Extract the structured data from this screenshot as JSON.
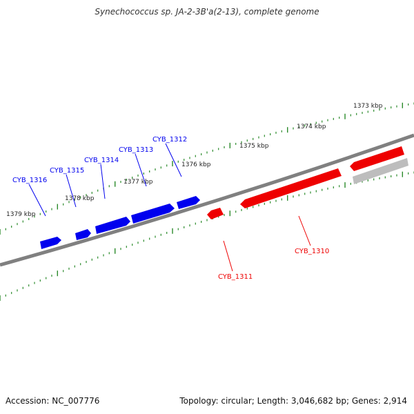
{
  "title": "Synechococcus sp. JA-2-3B'a(2-13), complete genome",
  "footer": {
    "accession": "Accession: NC_007776",
    "summary": "Topology: circular; Length: 3,046,682 bp; Genes: 2,914"
  },
  "colors": {
    "backbone": "#808080",
    "tick": "#2a8a2a",
    "forward_gene": "#0000ee",
    "reverse_gene": "#ee0000",
    "unlabeled_gene": "#bdbdbd"
  },
  "ruler_labels": [
    {
      "text": "1373 kbp"
    },
    {
      "text": "1374 kbp"
    },
    {
      "text": "1375 kbp"
    },
    {
      "text": "1376 kbp"
    },
    {
      "text": "1377 kbp"
    },
    {
      "text": "1378 kbp"
    },
    {
      "text": "1379 kbp"
    }
  ],
  "forward_genes": [
    {
      "label": "CYB_1312"
    },
    {
      "label": "CYB_1313"
    },
    {
      "label": "CYB_1314"
    },
    {
      "label": "CYB_1315"
    },
    {
      "label": "CYB_1316"
    }
  ],
  "reverse_genes": [
    {
      "label": "CYB_1310"
    },
    {
      "label": "CYB_1311"
    }
  ]
}
